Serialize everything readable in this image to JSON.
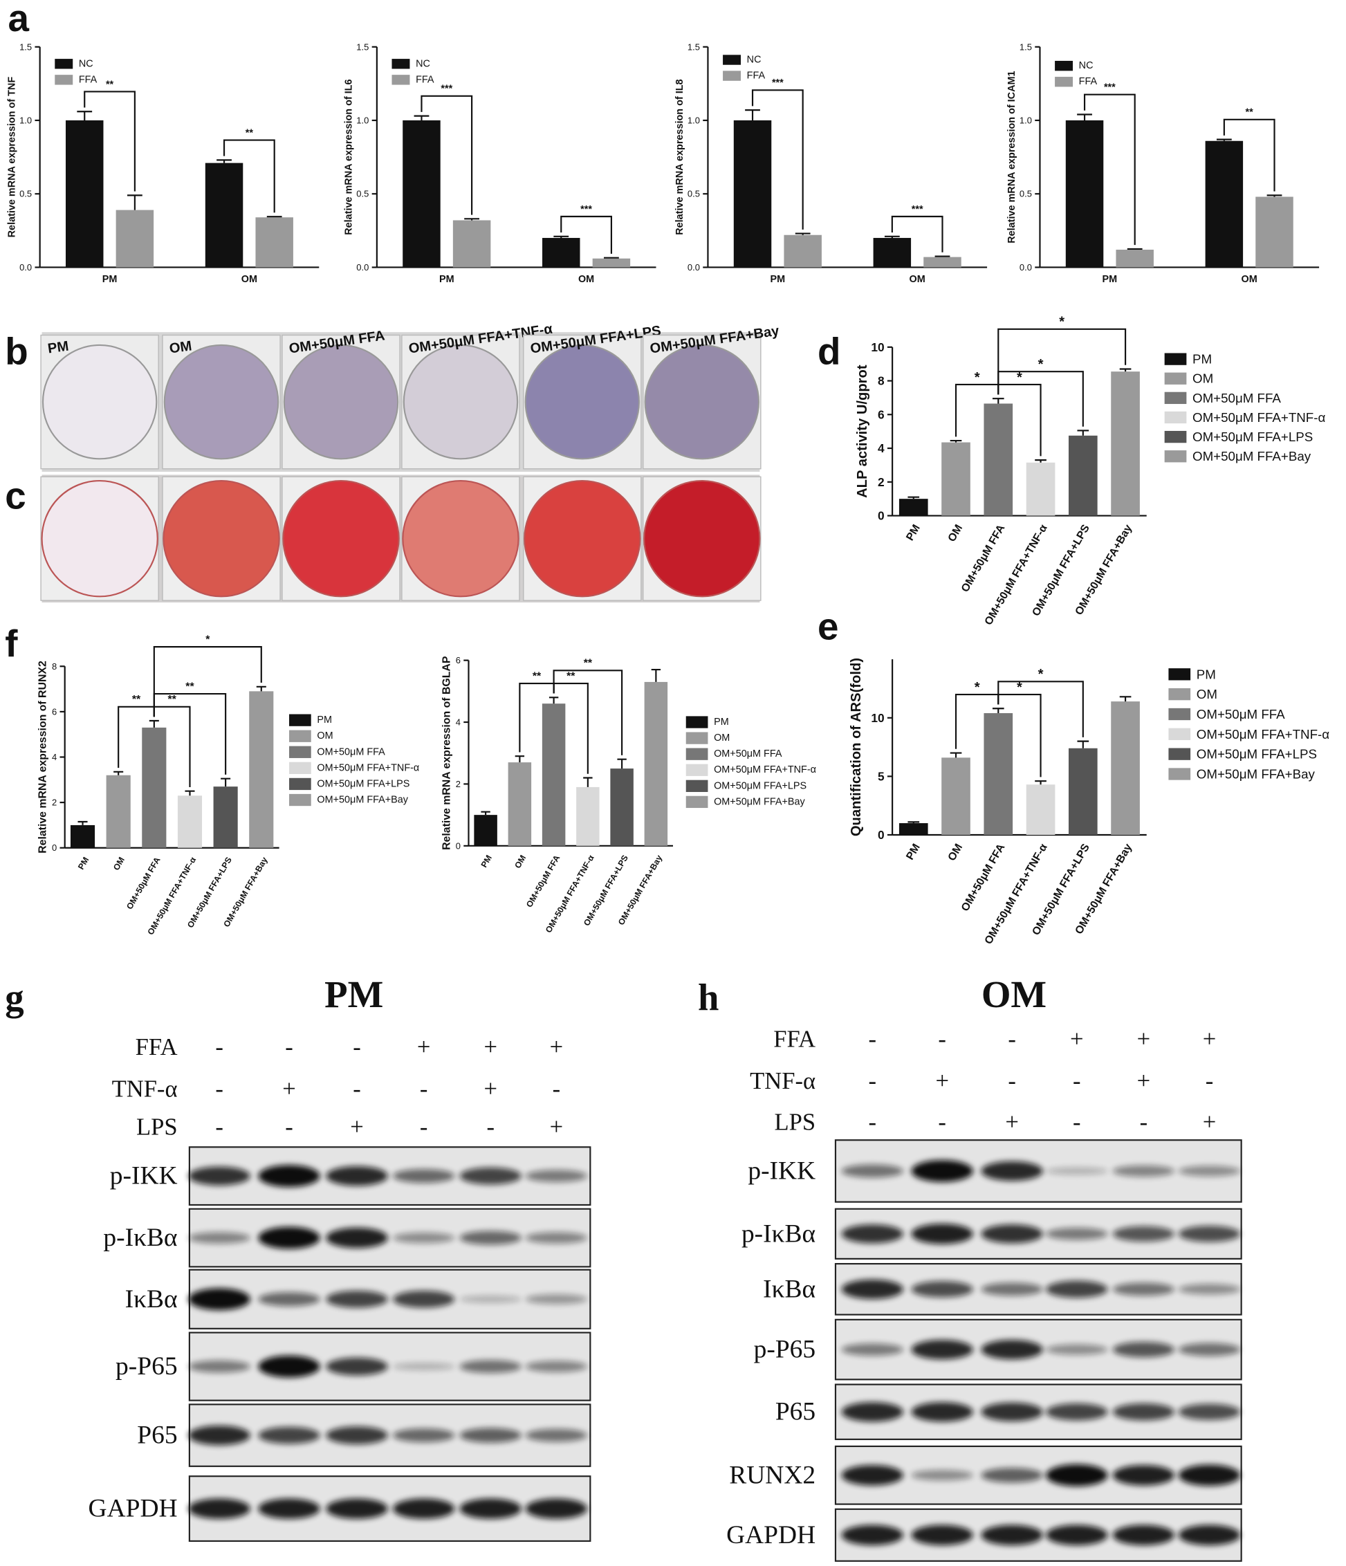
{
  "chart_data": [
    {
      "type": "bar",
      "ylabel": "Relative mRNA expression of TNF",
      "categories": [
        "PM",
        "OM"
      ],
      "series": [
        {
          "name": "NC",
          "color": "#111111",
          "values": [
            1.0,
            0.71
          ],
          "errors": [
            0.06,
            0.02
          ]
        },
        {
          "name": "FFA",
          "color": "#9a9a9a",
          "values": [
            0.39,
            0.34
          ],
          "errors": [
            0.1,
            0.005
          ]
        }
      ],
      "significance": [
        "**",
        "**"
      ],
      "ylim": [
        0,
        1.5
      ],
      "yticks": [
        {
          "value": 0,
          "label": "0.0"
        },
        0.5,
        {
          "value": 1,
          "label": "1.0"
        },
        1.5
      ]
    },
    {
      "type": "bar",
      "ylabel": "Relative mRNA expression of IL6",
      "categories": [
        "PM",
        "OM"
      ],
      "series": [
        {
          "name": "NC",
          "color": "#111111",
          "values": [
            1.0,
            0.2
          ],
          "errors": [
            0.03,
            0.01
          ]
        },
        {
          "name": "FFA",
          "color": "#9a9a9a",
          "values": [
            0.32,
            0.06
          ],
          "errors": [
            0.01,
            0.005
          ]
        }
      ],
      "significance": [
        "***",
        "***"
      ],
      "ylim": [
        0,
        1.5
      ],
      "yticks": [
        {
          "value": 0,
          "label": "0.0"
        },
        0.5,
        {
          "value": 1,
          "label": "1.0"
        },
        1.5
      ]
    },
    {
      "type": "bar",
      "ylabel": "Relative mRNA expression of IL8",
      "categories": [
        "PM",
        "OM"
      ],
      "series": [
        {
          "name": "NC",
          "color": "#111111",
          "values": [
            1.0,
            0.2
          ],
          "errors": [
            0.07,
            0.01
          ]
        },
        {
          "name": "FFA",
          "color": "#9a9a9a",
          "values": [
            0.22,
            0.07
          ],
          "errors": [
            0.01,
            0.005
          ]
        }
      ],
      "significance": [
        "***",
        "***"
      ],
      "ylim": [
        0,
        1.5
      ],
      "yticks": [
        {
          "value": 0,
          "label": "0.0"
        },
        0.5,
        {
          "value": 1,
          "label": "1.0"
        },
        1.5
      ]
    },
    {
      "type": "bar",
      "ylabel": "Relative mRNA expression of ICAM1",
      "categories": [
        "PM",
        "OM"
      ],
      "series": [
        {
          "name": "NC",
          "color": "#111111",
          "values": [
            1.0,
            0.86
          ],
          "errors": [
            0.04,
            0.01
          ]
        },
        {
          "name": "FFA",
          "color": "#9a9a9a",
          "values": [
            0.12,
            0.48
          ],
          "errors": [
            0.005,
            0.01
          ]
        }
      ],
      "significance": [
        "***",
        "**"
      ],
      "ylim": [
        0,
        1.5
      ],
      "yticks": [
        {
          "value": 0,
          "label": "0.0"
        },
        0.5,
        {
          "value": 1,
          "label": "1.0"
        },
        1.5
      ]
    },
    {
      "type": "bar",
      "ylabel": "ALP activity U/gprot",
      "categories": [
        "PM",
        "OM",
        "OM+50μM FFA",
        "OM+50μM FFA+TNF-α",
        "OM+50μM FFA+LPS",
        "OM+50μM FFA+Bay"
      ],
      "values": [
        1.0,
        4.35,
        6.65,
        3.15,
        4.75,
        8.55
      ],
      "errors": [
        0.1,
        0.1,
        0.3,
        0.15,
        0.3,
        0.15
      ],
      "colors": [
        "#111111",
        "#9a9a9a",
        "#777777",
        "#d9d9d9",
        "#555555",
        "#9a9a9a"
      ],
      "comparisons": [
        {
          "from": "OM+50μM FFA",
          "to": "OM",
          "label": "*"
        },
        {
          "from": "OM+50μM FFA",
          "to": "OM+50μM FFA+TNF-α",
          "label": "*"
        },
        {
          "from": "OM+50μM FFA",
          "to": "OM+50μM FFA+LPS",
          "label": "*"
        },
        {
          "from": "OM+50μM FFA",
          "to": "OM+50μM FFA+Bay",
          "label": "*"
        }
      ],
      "ylim": [
        0,
        10
      ],
      "yticks": [
        0,
        2,
        4,
        6,
        8,
        10
      ]
    },
    {
      "type": "bar",
      "ylabel": "Quantification of ARS(fold)",
      "categories": [
        "PM",
        "OM",
        "OM+50μM FFA",
        "OM+50μM FFA+TNF-α",
        "OM+50μM FFA+LPS",
        "OM+50μM FFA+Bay"
      ],
      "values": [
        1.0,
        6.6,
        10.4,
        4.3,
        7.4,
        11.4
      ],
      "errors": [
        0.1,
        0.4,
        0.4,
        0.3,
        0.6,
        0.4
      ],
      "colors": [
        "#111111",
        "#9a9a9a",
        "#777777",
        "#d9d9d9",
        "#555555",
        "#9a9a9a"
      ],
      "comparisons": [
        {
          "from": "OM+50μM FFA",
          "to": "OM",
          "label": "*"
        },
        {
          "from": "OM+50μM FFA",
          "to": "OM+50μM FFA+TNF-α",
          "label": "*"
        },
        {
          "from": "OM+50μM FFA",
          "to": "OM+50μM FFA+LPS",
          "label": "*"
        }
      ],
      "ylim": [
        0,
        15
      ],
      "yticks": [
        0,
        5,
        10
      ]
    },
    {
      "type": "bar",
      "ylabel": "Relative mRNA expression of RUNX2",
      "categories": [
        "PM",
        "OM",
        "OM+50μM FFA",
        "OM+50μM FFA+TNF-α",
        "OM+50μM FFA+LPS",
        "OM+50μM FFA+Bay"
      ],
      "values": [
        1.0,
        3.2,
        5.3,
        2.3,
        2.7,
        6.9
      ],
      "errors": [
        0.15,
        0.15,
        0.3,
        0.2,
        0.35,
        0.2
      ],
      "colors": [
        "#111111",
        "#9a9a9a",
        "#777777",
        "#d9d9d9",
        "#555555",
        "#9a9a9a"
      ],
      "comparisons": [
        {
          "from": "OM+50μM FFA",
          "to": "OM",
          "label": "**"
        },
        {
          "from": "OM+50μM FFA",
          "to": "OM+50μM FFA+TNF-α",
          "label": "**"
        },
        {
          "from": "OM+50μM FFA",
          "to": "OM+50μM FFA+LPS",
          "label": "**"
        },
        {
          "from": "OM+50μM FFA",
          "to": "OM+50μM FFA+Bay",
          "label": "*"
        }
      ],
      "ylim": [
        0,
        8
      ],
      "yticks": [
        0,
        2,
        4,
        6,
        8
      ]
    },
    {
      "type": "bar",
      "ylabel": "Relative mRNA expression of BGLAP",
      "categories": [
        "PM",
        "OM",
        "OM+50μM FFA",
        "OM+50μM FFA+TNF-α",
        "OM+50μM FFA+LPS",
        "OM+50μM FFA+Bay"
      ],
      "values": [
        1.0,
        2.7,
        4.6,
        1.9,
        2.5,
        5.3
      ],
      "errors": [
        0.1,
        0.2,
        0.2,
        0.3,
        0.3,
        0.4
      ],
      "colors": [
        "#111111",
        "#9a9a9a",
        "#777777",
        "#d9d9d9",
        "#555555",
        "#9a9a9a"
      ],
      "comparisons": [
        {
          "from": "OM+50μM FFA",
          "to": "OM",
          "label": "**"
        },
        {
          "from": "OM+50μM FFA",
          "to": "OM+50μM FFA+TNF-α",
          "label": "**"
        },
        {
          "from": "OM+50μM FFA",
          "to": "OM+50μM FFA+LPS",
          "label": "**"
        }
      ],
      "ylim": [
        0,
        6
      ],
      "yticks": [
        0,
        2,
        4,
        6
      ]
    }
  ],
  "panel_letters": [
    "a",
    "b",
    "c",
    "d",
    "e",
    "f",
    "g",
    "h"
  ],
  "staining": {
    "labels": [
      "PM",
      "OM",
      "OM+50μM FFA",
      "OM+50μM FFA+TNF-α",
      "OM+50μM FFA+LPS",
      "OM+50μM FFA+Bay"
    ]
  },
  "blots": [
    {
      "title": "PM",
      "treatments": [
        {
          "name": "FFA",
          "signs": [
            "-",
            "-",
            "-",
            "+",
            "+",
            "+"
          ]
        },
        {
          "name": "TNF-α",
          "signs": [
            "-",
            "+",
            "-",
            "-",
            "+",
            "-"
          ]
        },
        {
          "name": "LPS",
          "signs": [
            "-",
            "-",
            "+",
            "-",
            "-",
            "+"
          ]
        }
      ],
      "rows": [
        {
          "name": "p-IKK",
          "intensity": [
            0.8,
            1,
            0.85,
            0.5,
            0.7,
            0.4
          ]
        },
        {
          "name": "p-IκBα",
          "intensity": [
            0.35,
            1,
            0.9,
            0.3,
            0.5,
            0.35
          ]
        },
        {
          "name": "IκBα",
          "intensity": [
            1,
            0.5,
            0.7,
            0.7,
            0.1,
            0.25
          ]
        },
        {
          "name": "p-P65",
          "intensity": [
            0.4,
            1,
            0.75,
            0.1,
            0.45,
            0.35
          ]
        },
        {
          "name": "P65",
          "intensity": [
            0.85,
            0.7,
            0.75,
            0.5,
            0.55,
            0.45
          ]
        },
        {
          "name": "GAPDH",
          "intensity": [
            0.9,
            0.9,
            0.9,
            0.9,
            0.9,
            0.9
          ]
        }
      ]
    },
    {
      "title": "OM",
      "treatments": [
        {
          "name": "FFA",
          "signs": [
            "-",
            "-",
            "-",
            "+",
            "+",
            "+"
          ]
        },
        {
          "name": "TNF-α",
          "signs": [
            "-",
            "+",
            "-",
            "-",
            "+",
            "-"
          ]
        },
        {
          "name": "LPS",
          "signs": [
            "-",
            "-",
            "+",
            "-",
            "-",
            "+"
          ]
        }
      ],
      "rows": [
        {
          "name": "p-IKK",
          "intensity": [
            0.45,
            1,
            0.85,
            0.1,
            0.35,
            0.3
          ]
        },
        {
          "name": "p-IκBα",
          "intensity": [
            0.8,
            0.9,
            0.8,
            0.4,
            0.6,
            0.65
          ]
        },
        {
          "name": "IκBα",
          "intensity": [
            0.85,
            0.65,
            0.45,
            0.7,
            0.45,
            0.3
          ]
        },
        {
          "name": "p-P65",
          "intensity": [
            0.4,
            0.85,
            0.85,
            0.3,
            0.6,
            0.45
          ]
        },
        {
          "name": "P65",
          "intensity": [
            0.85,
            0.85,
            0.8,
            0.7,
            0.7,
            0.65
          ]
        },
        {
          "name": "RUNX2",
          "intensity": [
            0.9,
            0.3,
            0.55,
            1,
            0.9,
            0.95
          ]
        },
        {
          "name": "GAPDH",
          "intensity": [
            0.9,
            0.9,
            0.9,
            0.9,
            0.9,
            0.9
          ]
        }
      ]
    }
  ]
}
